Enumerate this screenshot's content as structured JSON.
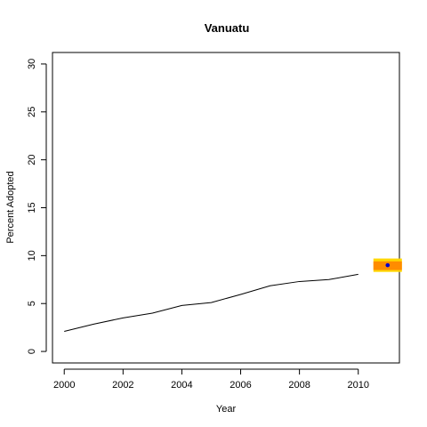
{
  "chart_data": {
    "type": "line",
    "title": "Vanuatu",
    "xlabel": "Year",
    "ylabel": "Percent Adopted",
    "xlim": [
      1999.6,
      2011.4
    ],
    "ylim": [
      -1.2,
      31.2
    ],
    "xticks": [
      2000,
      2002,
      2004,
      2006,
      2008,
      2010
    ],
    "yticks": [
      0,
      5,
      10,
      15,
      20,
      25,
      30
    ],
    "grid": false,
    "series": [
      {
        "x": [
          2000,
          2001,
          2002,
          2003,
          2004,
          2005,
          2006,
          2007,
          2008,
          2009,
          2010
        ],
        "y": [
          2.1,
          2.85,
          3.5,
          4.0,
          4.8,
          5.1,
          5.95,
          6.85,
          7.3,
          7.5,
          8.05
        ],
        "color": "#000000"
      }
    ],
    "projection": {
      "x": 2011,
      "y": 9.0,
      "outer_range": [
        8.3,
        9.7
      ],
      "inner_range": [
        8.5,
        9.4
      ],
      "outer_color": "#FFD700",
      "inner_color": "#FF8C00",
      "point_color": "#0000CD"
    }
  }
}
